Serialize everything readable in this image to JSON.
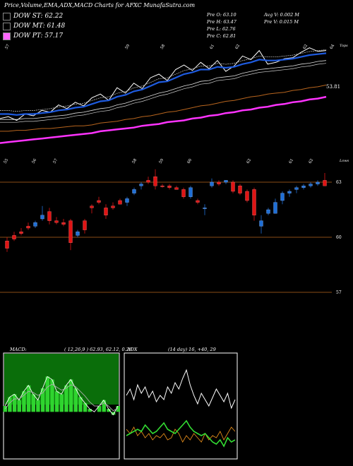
{
  "page_title": "Price,Volume,EMA,ADX,MACD Charts for AFXC MunafaSutra.com",
  "legend": [
    {
      "label": "DOW ST: 62.22",
      "color": "#000000"
    },
    {
      "label": "DOW MT: 61.48",
      "color": "#000000"
    },
    {
      "label": "DOW PT: 57.17",
      "color": "#ff66ff"
    }
  ],
  "ohlc": {
    "open": "Pre O: 63.10",
    "high": "Pre H: 63.47",
    "low": "Pre L: 62.76",
    "close": "Pre C: 62.81",
    "avg_volume": "Avg V: 0.002 M",
    "volume": "Pre V: 0.015 M"
  },
  "colors": {
    "background": "#000000",
    "up": "#1f6fd6",
    "down": "#e01414",
    "price_line": "#ffffff",
    "ema_fast": "#1e5be0",
    "ema_pt": "#ff33ff",
    "ema_lt": "#b8651e",
    "macd_hist": "#2fd42f",
    "adx_plus": "#e08a1a",
    "adx_minus": "#33dd33"
  },
  "chart_data": [
    {
      "type": "line",
      "name": "ema-panel",
      "top_label": "Tops",
      "bottom_label": "Lows",
      "value_label": "53.81",
      "top_tick_labels": [
        "57",
        "59",
        "58",
        "61",
        "62",
        "62",
        "64"
      ],
      "bottom_tick_labels": [
        "55",
        "56",
        "57",
        "58",
        "59",
        "60",
        "62",
        "61",
        "62"
      ],
      "series": [
        {
          "key": "price",
          "values": [
            55.4,
            55.6,
            55.2,
            55.9,
            55.7,
            56.3,
            56.1,
            56.9,
            56.5,
            57.2,
            56.8,
            57.7,
            58.1,
            57.4,
            58.8,
            58.2,
            59.3,
            58.7,
            59.9,
            60.3,
            59.6,
            60.8,
            61.3,
            60.7,
            61.6,
            60.9,
            61.8,
            60.6,
            61.2,
            62.3,
            61.9,
            62.9,
            61.4,
            61.6,
            62.0,
            62.1,
            62.7,
            63.2,
            62.8,
            62.9
          ]
        },
        {
          "key": "ema_st",
          "values": [
            55.9,
            55.9,
            55.8,
            55.9,
            55.9,
            56.0,
            56.1,
            56.3,
            56.4,
            56.6,
            56.7,
            57.0,
            57.3,
            57.4,
            57.8,
            58.0,
            58.4,
            58.6,
            59.0,
            59.4,
            59.5,
            59.9,
            60.3,
            60.5,
            60.8,
            60.8,
            61.1,
            61.0,
            61.1,
            61.4,
            61.6,
            61.9,
            61.8,
            61.8,
            61.9,
            62.0,
            62.2,
            62.4,
            62.5,
            62.6
          ]
        },
        {
          "key": "ema_mt",
          "values": [
            55.3,
            55.3,
            55.3,
            55.4,
            55.4,
            55.5,
            55.6,
            55.7,
            55.8,
            56.0,
            56.1,
            56.3,
            56.5,
            56.6,
            56.9,
            57.1,
            57.4,
            57.6,
            57.9,
            58.2,
            58.4,
            58.7,
            59.0,
            59.2,
            59.5,
            59.6,
            59.9,
            60.0,
            60.1,
            60.4,
            60.6,
            60.8,
            60.9,
            61.0,
            61.1,
            61.2,
            61.4,
            61.5,
            61.7,
            61.8
          ]
        },
        {
          "key": "ema_lt",
          "values": [
            54.0,
            54.0,
            54.1,
            54.1,
            54.2,
            54.3,
            54.3,
            54.4,
            54.5,
            54.6,
            54.6,
            54.7,
            54.9,
            55.0,
            55.1,
            55.3,
            55.4,
            55.6,
            55.7,
            55.9,
            56.1,
            56.2,
            56.4,
            56.6,
            56.8,
            56.9,
            57.1,
            57.3,
            57.4,
            57.6,
            57.8,
            57.9,
            58.1,
            58.2,
            58.3,
            58.5,
            58.6,
            58.8,
            58.9,
            59.1
          ]
        },
        {
          "key": "ema_pt",
          "values": [
            52.7,
            52.8,
            52.9,
            53.0,
            53.1,
            53.2,
            53.3,
            53.4,
            53.5,
            53.6,
            53.7,
            53.8,
            54.0,
            54.1,
            54.2,
            54.3,
            54.4,
            54.6,
            54.7,
            54.8,
            55.0,
            55.1,
            55.2,
            55.4,
            55.5,
            55.7,
            55.8,
            56.0,
            56.1,
            56.3,
            56.4,
            56.6,
            56.7,
            56.9,
            57.0,
            57.2,
            57.3,
            57.5,
            57.6,
            57.8
          ]
        }
      ]
    },
    {
      "type": "candlestick",
      "name": "price-panel",
      "price_labels": [
        "63",
        "60",
        "57"
      ],
      "ylim": [
        56.5,
        64.0
      ],
      "candles": [
        {
          "o": 59.8,
          "h": 60.0,
          "l": 59.2,
          "c": 59.4
        },
        {
          "o": 60.1,
          "h": 60.3,
          "l": 59.8,
          "c": 59.9
        },
        {
          "o": 60.3,
          "h": 60.5,
          "l": 60.1,
          "c": 60.2
        },
        {
          "o": 60.6,
          "h": 60.8,
          "l": 60.4,
          "c": 60.5
        },
        {
          "o": 60.6,
          "h": 60.9,
          "l": 60.5,
          "c": 60.8
        },
        {
          "o": 61.0,
          "h": 61.7,
          "l": 60.9,
          "c": 61.2
        },
        {
          "o": 61.4,
          "h": 61.6,
          "l": 60.7,
          "c": 60.9
        },
        {
          "o": 60.9,
          "h": 61.1,
          "l": 60.7,
          "c": 60.8
        },
        {
          "o": 60.8,
          "h": 61.0,
          "l": 60.6,
          "c": 60.7
        },
        {
          "o": 60.9,
          "h": 61.0,
          "l": 59.3,
          "c": 59.7
        },
        {
          "o": 60.1,
          "h": 60.4,
          "l": 60.0,
          "c": 60.3
        },
        {
          "o": 60.9,
          "h": 61.0,
          "l": 60.2,
          "c": 60.4
        },
        {
          "o": 61.7,
          "h": 61.8,
          "l": 61.3,
          "c": 61.6
        },
        {
          "o": 62.0,
          "h": 62.2,
          "l": 61.8,
          "c": 61.9
        },
        {
          "o": 61.6,
          "h": 61.8,
          "l": 61.0,
          "c": 61.2
        },
        {
          "o": 61.7,
          "h": 61.9,
          "l": 61.5,
          "c": 61.6
        },
        {
          "o": 62.0,
          "h": 62.1,
          "l": 61.8,
          "c": 61.8
        },
        {
          "o": 61.9,
          "h": 62.2,
          "l": 61.7,
          "c": 62.1
        },
        {
          "o": 62.4,
          "h": 62.7,
          "l": 62.3,
          "c": 62.6
        },
        {
          "o": 62.8,
          "h": 63.0,
          "l": 62.6,
          "c": 62.9
        },
        {
          "o": 63.1,
          "h": 63.3,
          "l": 62.9,
          "c": 63.0
        },
        {
          "o": 63.3,
          "h": 63.7,
          "l": 62.6,
          "c": 62.8
        },
        {
          "o": 62.8,
          "h": 62.9,
          "l": 62.7,
          "c": 62.75
        },
        {
          "o": 62.8,
          "h": 62.9,
          "l": 62.6,
          "c": 62.7
        },
        {
          "o": 62.7,
          "h": 62.8,
          "l": 62.6,
          "c": 62.6
        },
        {
          "o": 62.6,
          "h": 62.7,
          "l": 62.1,
          "c": 62.2
        },
        {
          "o": 62.2,
          "h": 62.8,
          "l": 62.1,
          "c": 62.7
        },
        {
          "o": 62.0,
          "h": 62.1,
          "l": 61.8,
          "c": 61.9
        },
        {
          "o": 61.6,
          "h": 61.8,
          "l": 61.2,
          "c": 61.6
        },
        {
          "o": 62.8,
          "h": 63.2,
          "l": 62.7,
          "c": 63.0
        },
        {
          "o": 63.0,
          "h": 63.1,
          "l": 62.8,
          "c": 62.9
        },
        {
          "o": 63.0,
          "h": 63.1,
          "l": 62.9,
          "c": 63.1
        },
        {
          "o": 63.0,
          "h": 63.1,
          "l": 62.4,
          "c": 62.5
        },
        {
          "o": 62.8,
          "h": 62.9,
          "l": 62.3,
          "c": 62.4
        },
        {
          "o": 62.5,
          "h": 62.6,
          "l": 61.9,
          "c": 62.0
        },
        {
          "o": 62.6,
          "h": 62.7,
          "l": 60.9,
          "c": 61.2
        },
        {
          "o": 60.6,
          "h": 61.2,
          "l": 60.2,
          "c": 60.9
        },
        {
          "o": 61.3,
          "h": 61.6,
          "l": 61.2,
          "c": 61.5
        },
        {
          "o": 61.3,
          "h": 62.1,
          "l": 61.3,
          "c": 61.9
        },
        {
          "o": 62.0,
          "h": 62.5,
          "l": 61.8,
          "c": 62.4
        },
        {
          "o": 62.4,
          "h": 62.6,
          "l": 62.2,
          "c": 62.5
        },
        {
          "o": 62.6,
          "h": 62.8,
          "l": 62.4,
          "c": 62.7
        },
        {
          "o": 62.7,
          "h": 62.9,
          "l": 62.6,
          "c": 62.8
        },
        {
          "o": 62.8,
          "h": 63.0,
          "l": 62.7,
          "c": 62.9
        },
        {
          "o": 62.9,
          "h": 63.1,
          "l": 62.8,
          "c": 63.0
        },
        {
          "o": 63.1,
          "h": 63.5,
          "l": 62.8,
          "c": 62.8
        }
      ]
    },
    {
      "type": "line",
      "name": "macd-panel",
      "label": "MACD:",
      "params": "( 12,26,9 ) 62.93, 62.12, 0.28",
      "series": [
        {
          "key": "macd",
          "values": [
            0.1,
            0.25,
            0.3,
            0.2,
            0.35,
            0.45,
            0.3,
            0.2,
            0.4,
            0.6,
            0.55,
            0.35,
            0.3,
            0.45,
            0.55,
            0.4,
            0.25,
            0.15,
            0.05,
            0.0,
            0.1,
            0.2,
            0.05,
            -0.05,
            0.1
          ]
        },
        {
          "key": "signal",
          "values": [
            0.05,
            0.15,
            0.22,
            0.22,
            0.28,
            0.35,
            0.33,
            0.28,
            0.32,
            0.42,
            0.47,
            0.42,
            0.37,
            0.4,
            0.46,
            0.43,
            0.35,
            0.27,
            0.17,
            0.1,
            0.1,
            0.15,
            0.1,
            0.02,
            0.06
          ]
        },
        {
          "key": "hist",
          "values": [
            0.05,
            0.1,
            0.08,
            -0.02,
            0.07,
            0.1,
            -0.03,
            -0.08,
            0.08,
            0.18,
            0.08,
            -0.07,
            -0.07,
            0.05,
            0.09,
            -0.03,
            -0.1,
            -0.12,
            -0.12,
            -0.1,
            0.0,
            0.05,
            -0.05,
            -0.07,
            0.04
          ]
        }
      ]
    },
    {
      "type": "line",
      "name": "adx-panel",
      "label": "ADX",
      "params": "(14 day) 16, +40, 29",
      "series": [
        {
          "key": "adx",
          "values": [
            30,
            33,
            28,
            35,
            31,
            34,
            29,
            32,
            27,
            30,
            28,
            34,
            31,
            36,
            33,
            38,
            42,
            35,
            30,
            26,
            31,
            28,
            25,
            29,
            33,
            30,
            27,
            31,
            24,
            28
          ]
        },
        {
          "key": "di_plus",
          "values": [
            14,
            12,
            15,
            11,
            13,
            10,
            12,
            9,
            11,
            10,
            12,
            9,
            10,
            14,
            12,
            8,
            11,
            9,
            12,
            10,
            8,
            12,
            9,
            11,
            10,
            13,
            9,
            12,
            15,
            13
          ]
        },
        {
          "key": "di_minus",
          "values": [
            11,
            12,
            13,
            14,
            13,
            16,
            14,
            12,
            13,
            15,
            17,
            14,
            13,
            12,
            14,
            16,
            18,
            15,
            13,
            12,
            11,
            12,
            10,
            8,
            7,
            9,
            6,
            10,
            8,
            9
          ]
        }
      ]
    }
  ]
}
